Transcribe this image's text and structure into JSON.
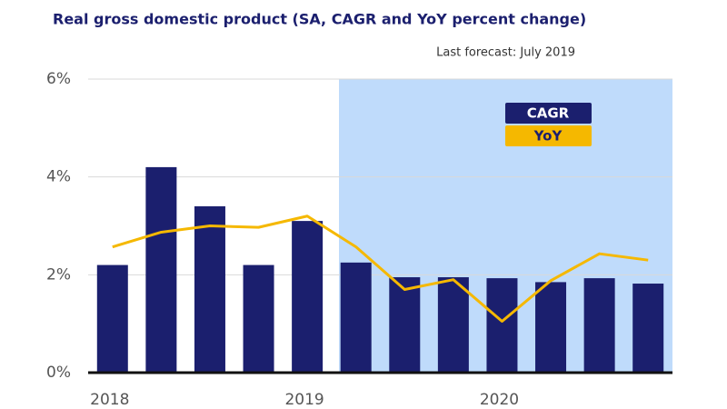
{
  "chart_data": {
    "type": "bar-line",
    "title": "Real gross domestic product (SA, CAGR and YoY percent change)",
    "subtitle": "Last forecast: July 2019",
    "categories": [
      "2018",
      null,
      null,
      null,
      "2019",
      null,
      null,
      null,
      "2020",
      null,
      null,
      null
    ],
    "series": [
      {
        "name": "CAGR",
        "type": "bar",
        "color": "#1b1f6e",
        "values": [
          2.2,
          4.2,
          3.4,
          2.2,
          3.1,
          2.25,
          1.95,
          1.95,
          1.93,
          1.85,
          1.93,
          1.82
        ]
      },
      {
        "name": "YoY",
        "type": "line",
        "color": "#f5b800",
        "values": [
          2.57,
          2.87,
          3.0,
          2.97,
          3.2,
          2.57,
          1.7,
          1.9,
          1.05,
          1.88,
          2.43,
          2.3
        ]
      }
    ],
    "ylim": [
      0,
      6
    ],
    "yticks": [
      {
        "value": 0,
        "label": "0%"
      },
      {
        "value": 2,
        "label": "2%"
      },
      {
        "value": 4,
        "label": "4%"
      },
      {
        "value": 6,
        "label": "6%"
      }
    ],
    "grid": true
  }
}
